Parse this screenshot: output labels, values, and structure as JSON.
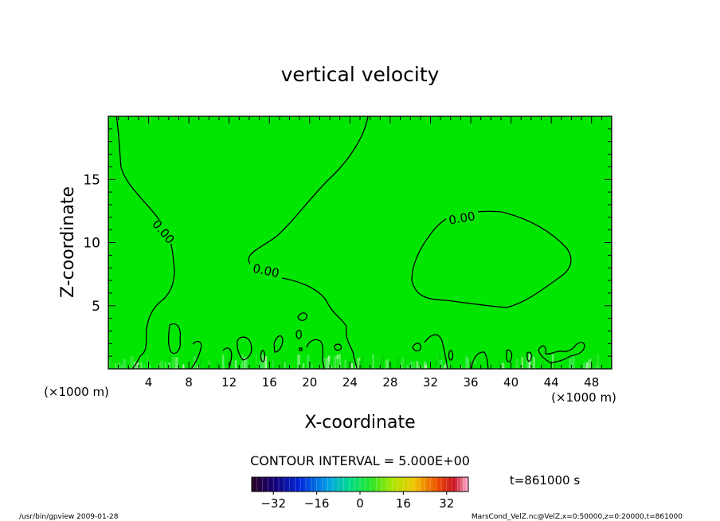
{
  "chart_data": {
    "type": "heatmap",
    "title": "vertical velocity",
    "xlabel": "X-coordinate",
    "ylabel": "Z-coordinate",
    "x_unit": "(×1000 m)",
    "x_unit_right": "(×1000 m)",
    "xlim": [
      0,
      50
    ],
    "ylim": [
      0,
      20
    ],
    "x_ticks": [
      4,
      8,
      12,
      16,
      20,
      24,
      28,
      32,
      36,
      40,
      44,
      48
    ],
    "y_ticks": [
      5,
      10,
      15
    ],
    "field_color": "#00e600",
    "contour_interval_text": "CONTOUR INTERVAL = 5.000E+00",
    "time_text": "t=861000 s",
    "colorbar": {
      "range": [
        -40,
        40
      ],
      "tick_values": [
        -32,
        -16,
        0,
        16,
        32
      ],
      "tick_labels": [
        "−32",
        "−16",
        "0",
        "16",
        "32"
      ]
    },
    "contour_labels": [
      "0.00",
      "0.00",
      "0.00"
    ]
  },
  "footer": {
    "left": "/usr/bin/gpview   2009-01-28",
    "right": "MarsCond_VelZ.nc@VelZ,x=0:50000,z=0:20000,t=861000"
  }
}
